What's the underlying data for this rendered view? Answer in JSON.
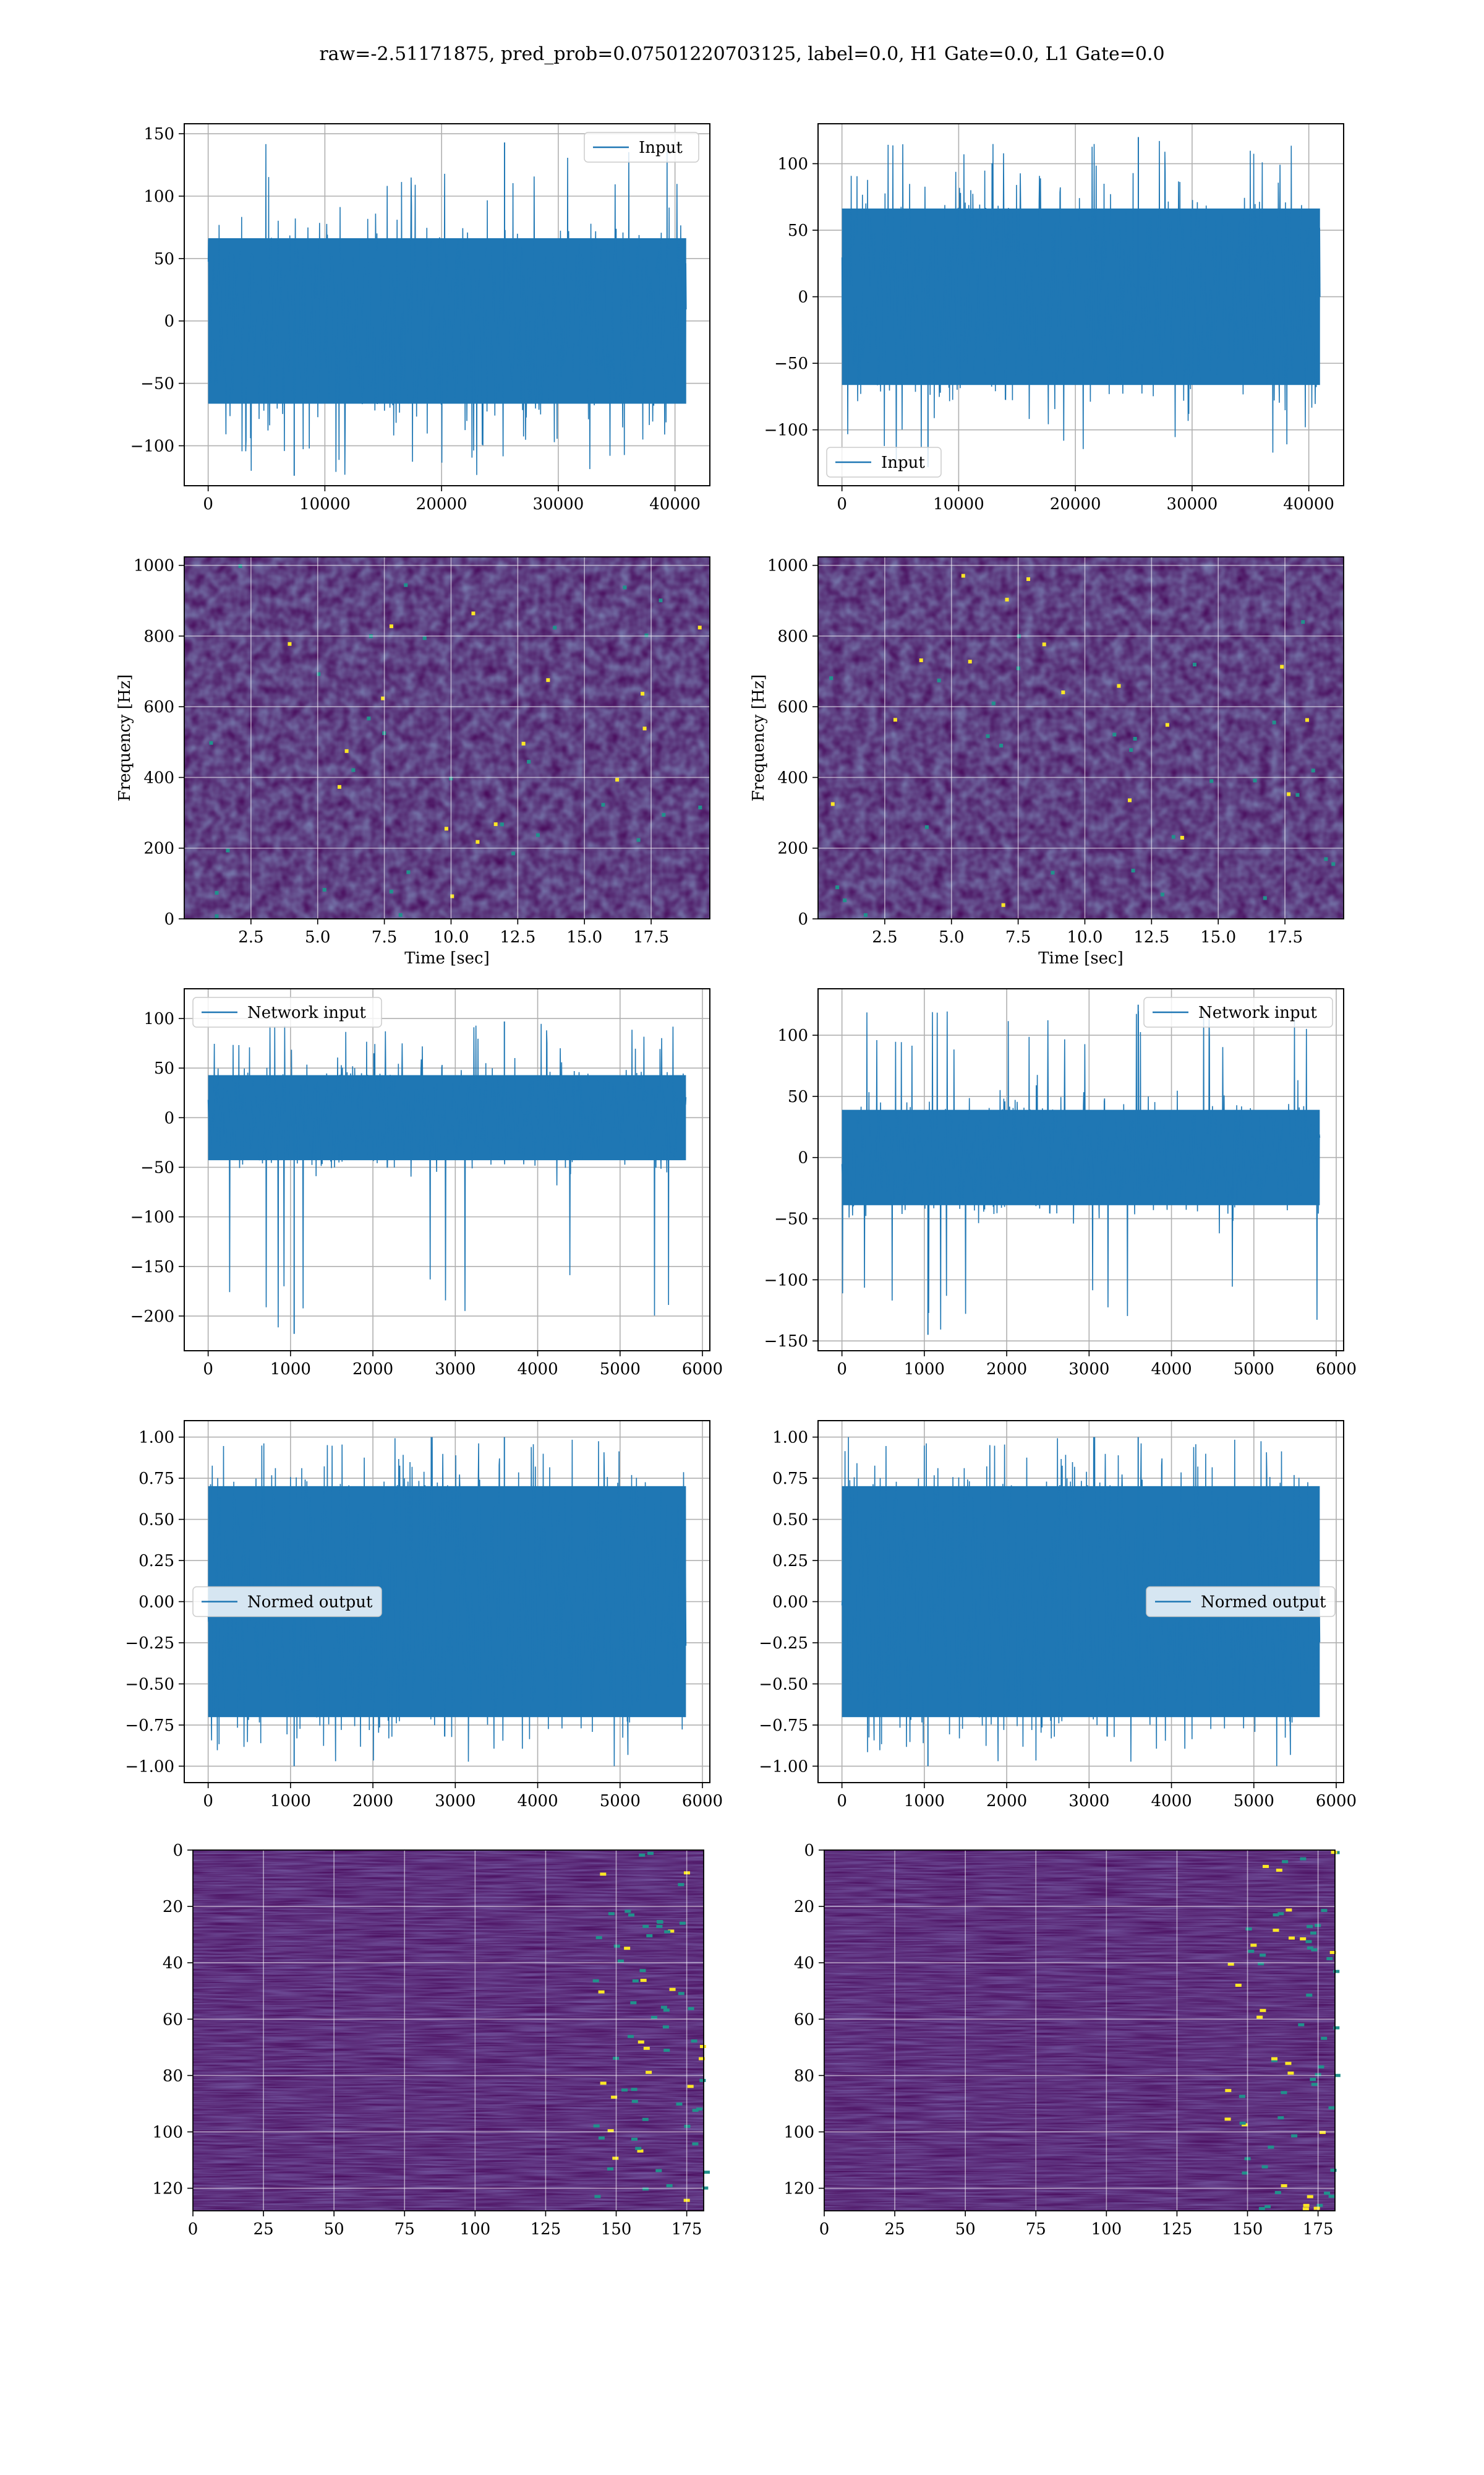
{
  "figure": {
    "title": "raw=-2.51171875, pred_prob=0.07501220703125, label=0.0, H1 Gate=0.0, L1 Gate=0.0"
  },
  "colors": {
    "series": "#1f77b4",
    "grid": "#b0b0b0",
    "viridis_low": "#440154",
    "viridis_mid": "#21918c",
    "viridis_high": "#fde725"
  },
  "chart_data": [
    {
      "id": "h1-input",
      "type": "line",
      "legend": "Input",
      "legend_loc": "upper right",
      "xlim": [
        -2048,
        42986
      ],
      "ylim": [
        -132,
        158
      ],
      "xticks": [
        0,
        10000,
        20000,
        30000,
        40000
      ],
      "yticks": [
        -100,
        -50,
        0,
        50,
        100,
        150
      ],
      "series": [
        {
          "name": "Input",
          "n_samples": 40960,
          "typical_range": [
            -85,
            85
          ],
          "peak_max": 143,
          "peak_min": -124
        }
      ],
      "grid": true
    },
    {
      "id": "l1-input",
      "type": "line",
      "legend": "Input",
      "legend_loc": "lower left",
      "xlim": [
        -2048,
        42986
      ],
      "ylim": [
        -142,
        130
      ],
      "xticks": [
        0,
        10000,
        20000,
        30000,
        40000
      ],
      "yticks": [
        -100,
        -50,
        0,
        50,
        100
      ],
      "series": [
        {
          "name": "Input",
          "n_samples": 40960,
          "typical_range": [
            -85,
            85
          ],
          "peak_max": 120,
          "peak_min": -128
        }
      ],
      "grid": true
    },
    {
      "id": "h1-spectrogram",
      "type": "heatmap",
      "xlabel": "Time [sec]",
      "ylabel": "Frequency [Hz]",
      "xlim": [
        0,
        19.7
      ],
      "ylim": [
        0,
        1024
      ],
      "xticks": [
        2.5,
        5.0,
        7.5,
        10.0,
        12.5,
        15.0,
        17.5
      ],
      "yticks": [
        0,
        200,
        400,
        600,
        800,
        1000
      ],
      "colormap": "viridis",
      "grid": true
    },
    {
      "id": "l1-spectrogram",
      "type": "heatmap",
      "xlabel": "Time [sec]",
      "ylabel": "Frequency [Hz]",
      "xlim": [
        0,
        19.7
      ],
      "ylim": [
        0,
        1024
      ],
      "xticks": [
        2.5,
        5.0,
        7.5,
        10.0,
        12.5,
        15.0,
        17.5
      ],
      "yticks": [
        0,
        200,
        400,
        600,
        800,
        1000
      ],
      "colormap": "viridis",
      "grid": true
    },
    {
      "id": "h1-network-input",
      "type": "line",
      "legend": "Network input",
      "legend_loc": "upper left",
      "xlim": [
        -290,
        6090
      ],
      "ylim": [
        -235,
        130
      ],
      "xticks": [
        0,
        1000,
        2000,
        3000,
        4000,
        5000,
        6000
      ],
      "yticks": [
        -200,
        -150,
        -100,
        -50,
        0,
        50,
        100
      ],
      "series": [
        {
          "name": "Network input",
          "n_samples": 5800,
          "typical_range": [
            -55,
            55
          ],
          "peak_max": 97,
          "peak_min": -218
        }
      ],
      "grid": true
    },
    {
      "id": "l1-network-input",
      "type": "line",
      "legend": "Network input",
      "legend_loc": "upper right",
      "xlim": [
        -290,
        6090
      ],
      "ylim": [
        -158,
        138
      ],
      "xticks": [
        0,
        1000,
        2000,
        3000,
        4000,
        5000,
        6000
      ],
      "yticks": [
        -150,
        -100,
        -50,
        0,
        50,
        100
      ],
      "series": [
        {
          "name": "Network input",
          "n_samples": 5800,
          "typical_range": [
            -50,
            50
          ],
          "peak_max": 125,
          "peak_min": -145
        }
      ],
      "grid": true
    },
    {
      "id": "h1-normed-output",
      "type": "line",
      "legend": "Normed output",
      "legend_loc": "center left",
      "xlim": [
        -290,
        6090
      ],
      "ylim": [
        -1.1,
        1.1
      ],
      "xticks": [
        0,
        1000,
        2000,
        3000,
        4000,
        5000,
        6000
      ],
      "yticks": [
        -1.0,
        -0.75,
        -0.5,
        -0.25,
        0.0,
        0.25,
        0.5,
        0.75,
        1.0
      ],
      "series": [
        {
          "name": "Normed output",
          "n_samples": 5800,
          "typical_range": [
            -0.9,
            0.9
          ],
          "peak_max": 1.0,
          "peak_min": -1.0
        }
      ],
      "grid": true
    },
    {
      "id": "l1-normed-output",
      "type": "line",
      "legend": "Normed output",
      "legend_loc": "center right",
      "xlim": [
        -290,
        6090
      ],
      "ylim": [
        -1.1,
        1.1
      ],
      "xticks": [
        0,
        1000,
        2000,
        3000,
        4000,
        5000,
        6000
      ],
      "yticks": [
        -1.0,
        -0.75,
        -0.5,
        -0.25,
        0.0,
        0.25,
        0.5,
        0.75,
        1.0
      ],
      "series": [
        {
          "name": "Normed output",
          "n_samples": 5800,
          "typical_range": [
            -0.9,
            0.9
          ],
          "peak_max": 1.0,
          "peak_min": -1.0
        }
      ],
      "grid": true
    },
    {
      "id": "h1-feature-map",
      "type": "heatmap",
      "xlim": [
        0,
        181
      ],
      "ylim": [
        128,
        0
      ],
      "xticks": [
        0,
        25,
        50,
        75,
        100,
        125,
        150,
        175
      ],
      "yticks": [
        0,
        20,
        40,
        60,
        80,
        100,
        120
      ],
      "colormap": "viridis",
      "grid": true
    },
    {
      "id": "l1-feature-map",
      "type": "heatmap",
      "xlim": [
        0,
        181
      ],
      "ylim": [
        128,
        0
      ],
      "xticks": [
        0,
        25,
        50,
        75,
        100,
        125,
        150,
        175
      ],
      "yticks": [
        0,
        20,
        40,
        60,
        80,
        100,
        120
      ],
      "colormap": "viridis",
      "grid": true
    }
  ]
}
